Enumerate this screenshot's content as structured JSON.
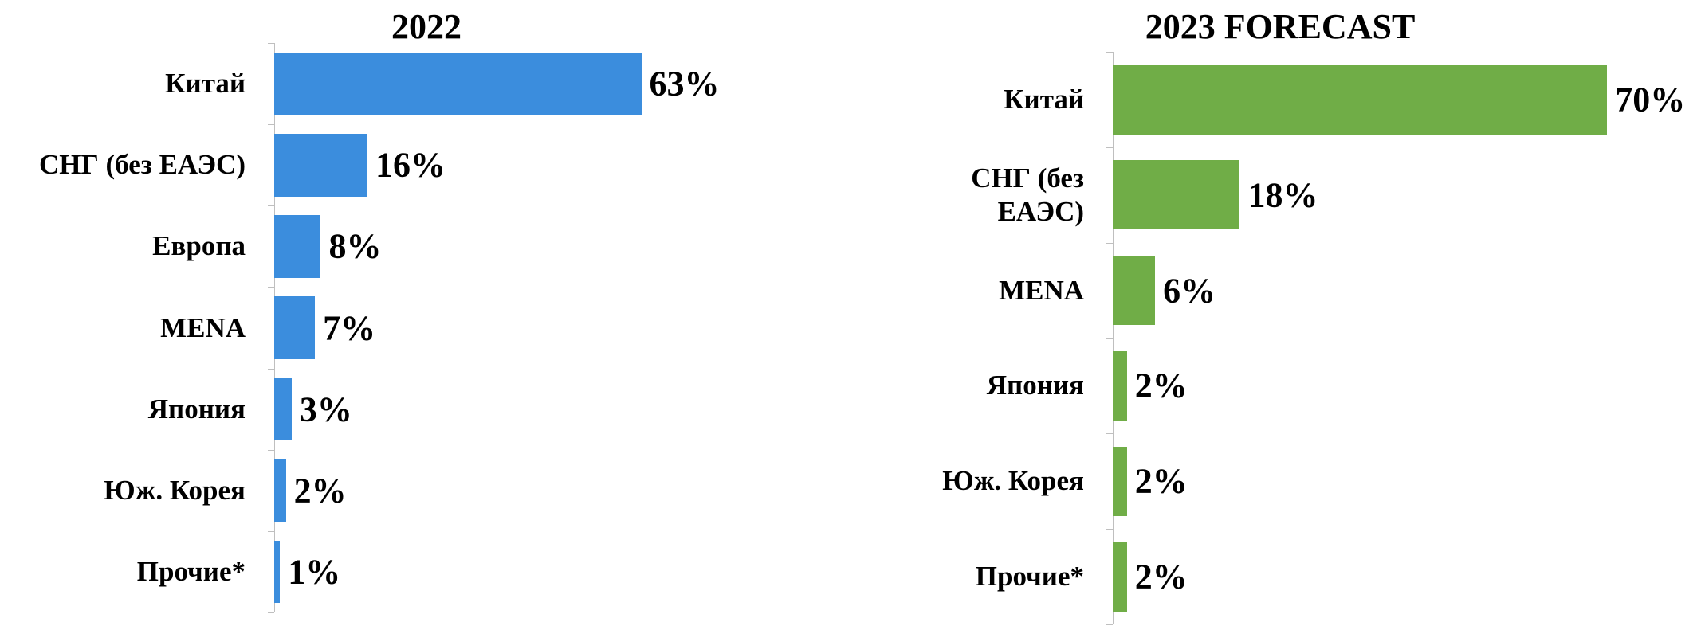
{
  "chart_data": [
    {
      "type": "barh",
      "title": "2022",
      "categories": [
        "Китай",
        "СНГ (без ЕАЭС)",
        "Европа",
        "MENA",
        "Япония",
        "Юж. Корея",
        "Прочие*"
      ],
      "values": [
        63,
        16,
        8,
        7,
        3,
        2,
        1
      ],
      "value_labels": [
        "63%",
        "16%",
        "8%",
        "7%",
        "3%",
        "2%",
        "1%"
      ],
      "color": "#3b8ddd",
      "xlim": [
        0,
        80
      ]
    },
    {
      "type": "barh",
      "title": "2023 FORECAST",
      "categories": [
        "Китай",
        "СНГ (без ЕАЭС)",
        "MENA",
        "Япония",
        "Юж. Корея",
        "Прочие*"
      ],
      "values": [
        70,
        18,
        6,
        2,
        2,
        2
      ],
      "value_labels": [
        "70%",
        "18%",
        "6%",
        "2%",
        "2%",
        "2%"
      ],
      "color": "#70ad47",
      "xlim": [
        0,
        80
      ]
    }
  ]
}
